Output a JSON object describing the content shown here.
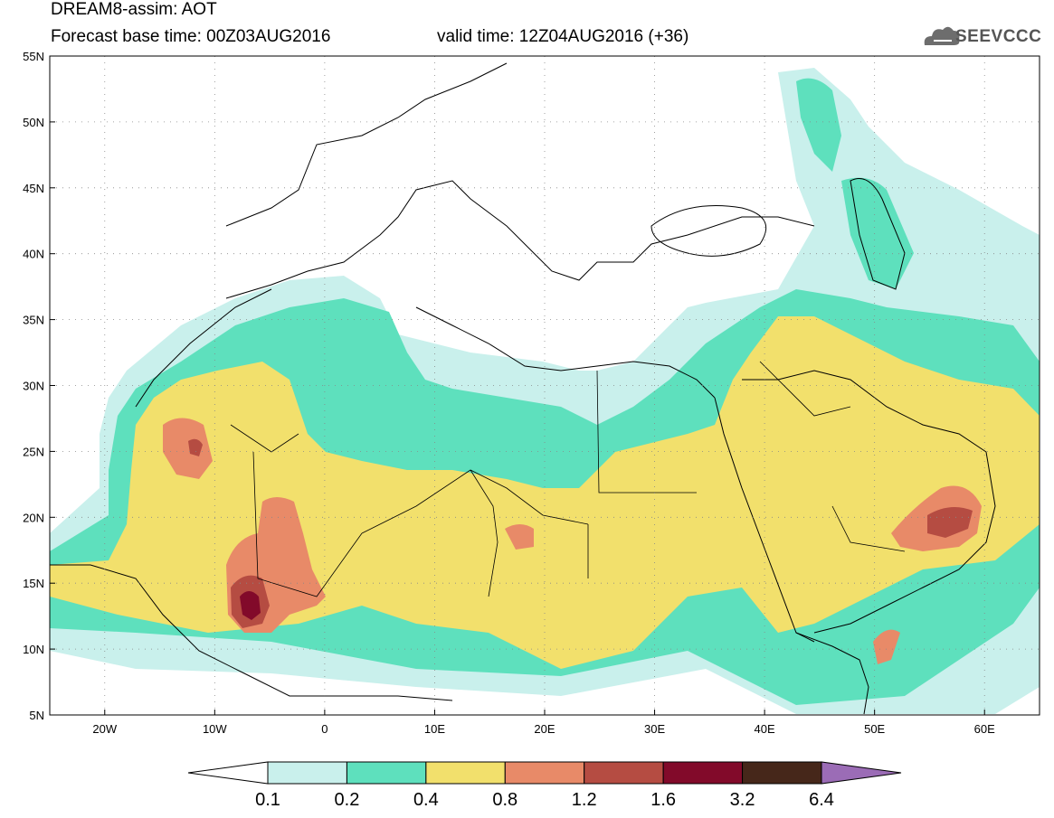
{
  "header": {
    "title": "DREAM8-assim: AOT",
    "base_time": "Forecast base time: 00Z03AUG2016",
    "valid_time": "valid time: 12Z04AUG2016 (+36)",
    "logo_text": "SEEVCCC"
  },
  "map": {
    "lon_range": [
      -25,
      65
    ],
    "lat_range": [
      5,
      55
    ],
    "lat_labels": [
      "55N",
      "50N",
      "45N",
      "40N",
      "35N",
      "30N",
      "25N",
      "20N",
      "15N",
      "10N",
      "5N"
    ],
    "lon_labels": [
      "20W",
      "10W",
      "0",
      "10E",
      "20E",
      "30E",
      "40E",
      "50E",
      "60E"
    ],
    "colors": {
      "c01": "#c9f0ec",
      "c02": "#5ee0bd",
      "c04": "#f2e06c",
      "c08": "#e88a68",
      "c12": "#b54c42",
      "c16": "#820a2a",
      "c32": "#46271a",
      "c64": "#9b6cb6"
    }
  },
  "colorbar": {
    "labels": [
      "0.1",
      "0.2",
      "0.4",
      "0.8",
      "1.2",
      "1.6",
      "3.2",
      "6.4"
    ],
    "colors": [
      "#c9f0ec",
      "#5ee0bd",
      "#f2e06c",
      "#e88a68",
      "#b54c42",
      "#820a2a",
      "#46271a"
    ],
    "over_color": "#9b6cb6",
    "under_color": "#ffffff"
  }
}
